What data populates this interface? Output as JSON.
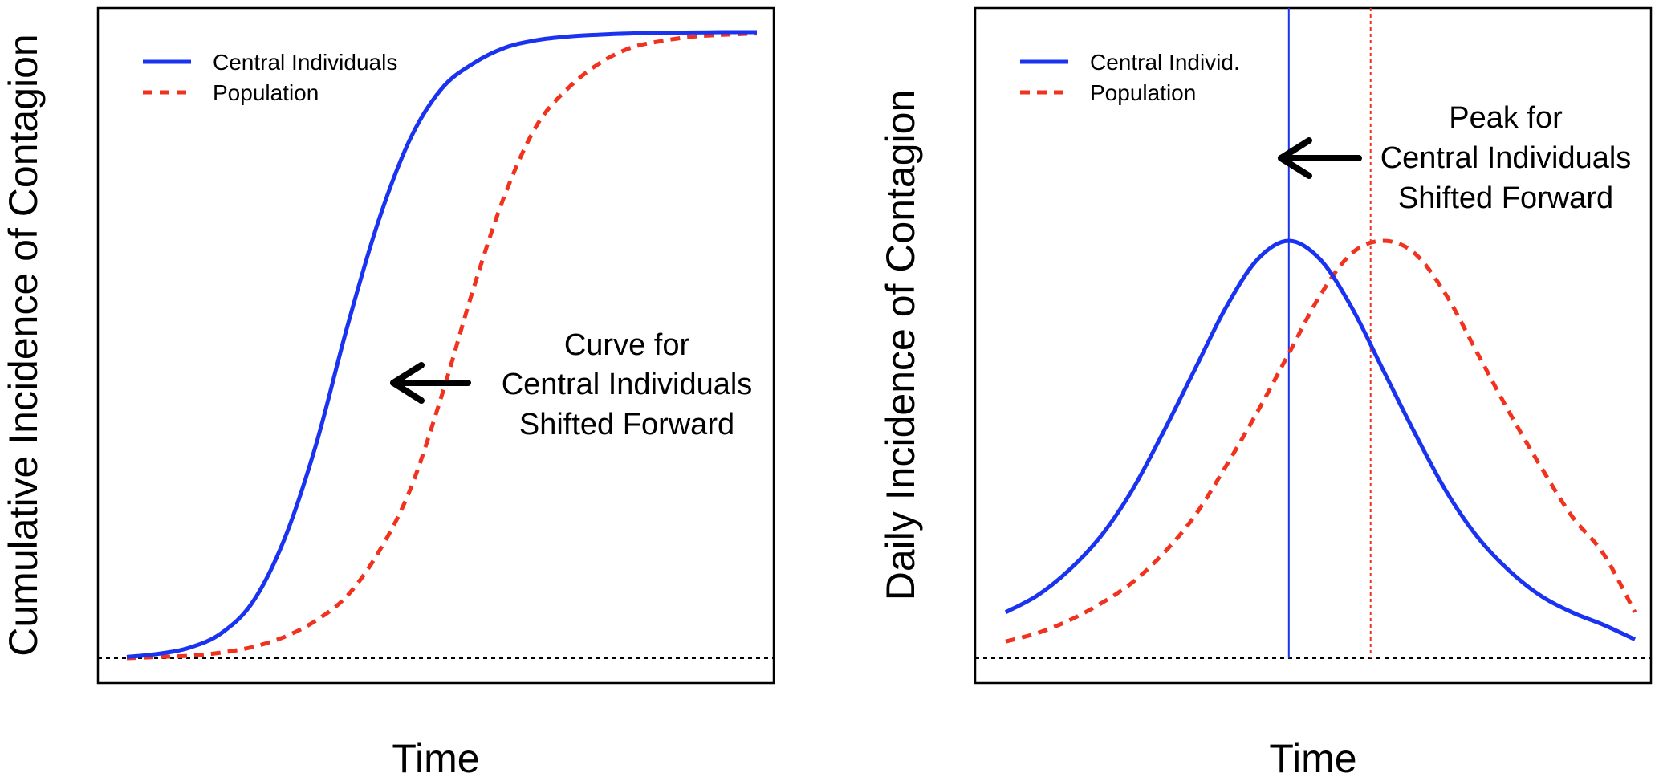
{
  "colors": {
    "central": "#1a33f0",
    "population": "#f0321e",
    "baseline": "#000000",
    "frame": "#000000"
  },
  "chart_data": [
    {
      "type": "line",
      "title": "",
      "xlabel": "Time",
      "ylabel": "Cumulative Incidence of Contagion",
      "x_ticks": "none",
      "y_ticks": "none",
      "x": [
        0,
        0.5,
        1,
        1.5,
        2,
        2.5,
        3,
        3.5,
        4,
        4.5,
        5,
        5.5,
        6,
        6.5,
        7,
        7.5,
        8,
        8.5,
        9,
        9.5,
        10
      ],
      "series": [
        {
          "name": "Central Individuals",
          "style": "solid",
          "values": [
            0.002,
            0.007,
            0.017,
            0.04,
            0.09,
            0.19,
            0.34,
            0.53,
            0.7,
            0.83,
            0.91,
            0.95,
            0.975,
            0.987,
            0.993,
            0.996,
            0.998,
            0.999,
            0.9995,
            1.0,
            1.0
          ]
        },
        {
          "name": "Population",
          "style": "dashed",
          "values": [
            0.0,
            0.002,
            0.004,
            0.009,
            0.018,
            0.034,
            0.06,
            0.1,
            0.17,
            0.27,
            0.42,
            0.59,
            0.74,
            0.85,
            0.91,
            0.95,
            0.975,
            0.986,
            0.993,
            0.996,
            0.998
          ]
        }
      ],
      "baseline": 0,
      "legend": {
        "position": "top-left",
        "entries": [
          "Central Individuals",
          "Population"
        ]
      },
      "annotation": {
        "lines": [
          "Curve for",
          "Central Individuals",
          "Shifted Forward"
        ],
        "arrow": "left"
      },
      "grid": false
    },
    {
      "type": "line",
      "title": "",
      "xlabel": "Time",
      "ylabel": "Daily Incidence of Contagion",
      "x_ticks": "none",
      "y_ticks": "none",
      "x": [
        0,
        0.5,
        1,
        1.5,
        2,
        2.5,
        3,
        3.5,
        4,
        4.5,
        5,
        5.5,
        6,
        6.5,
        7,
        7.5,
        8,
        8.5,
        9,
        9.5,
        10
      ],
      "series": [
        {
          "name": "Central Individ.",
          "style": "solid",
          "values": [
            0.11,
            0.15,
            0.21,
            0.29,
            0.4,
            0.54,
            0.69,
            0.84,
            0.955,
            1.0,
            0.955,
            0.84,
            0.69,
            0.54,
            0.4,
            0.29,
            0.21,
            0.15,
            0.11,
            0.08,
            0.045
          ]
        },
        {
          "name": "Population",
          "style": "dashed",
          "values": [
            0.04,
            0.06,
            0.09,
            0.13,
            0.18,
            0.25,
            0.34,
            0.46,
            0.59,
            0.73,
            0.87,
            0.97,
            1.0,
            0.97,
            0.87,
            0.73,
            0.59,
            0.46,
            0.34,
            0.25,
            0.11
          ]
        }
      ],
      "baseline": 0,
      "vertical_lines": [
        {
          "series": "Central Individ.",
          "x": 4.5,
          "style": "solid"
        },
        {
          "series": "Population",
          "x": 5.8,
          "style": "dotted"
        }
      ],
      "legend": {
        "position": "top-left",
        "entries": [
          "Central Individ.",
          "Population"
        ]
      },
      "annotation": {
        "lines": [
          "Peak for",
          "Central Individuals",
          "Shifted Forward"
        ],
        "arrow": "left"
      },
      "grid": false
    }
  ]
}
